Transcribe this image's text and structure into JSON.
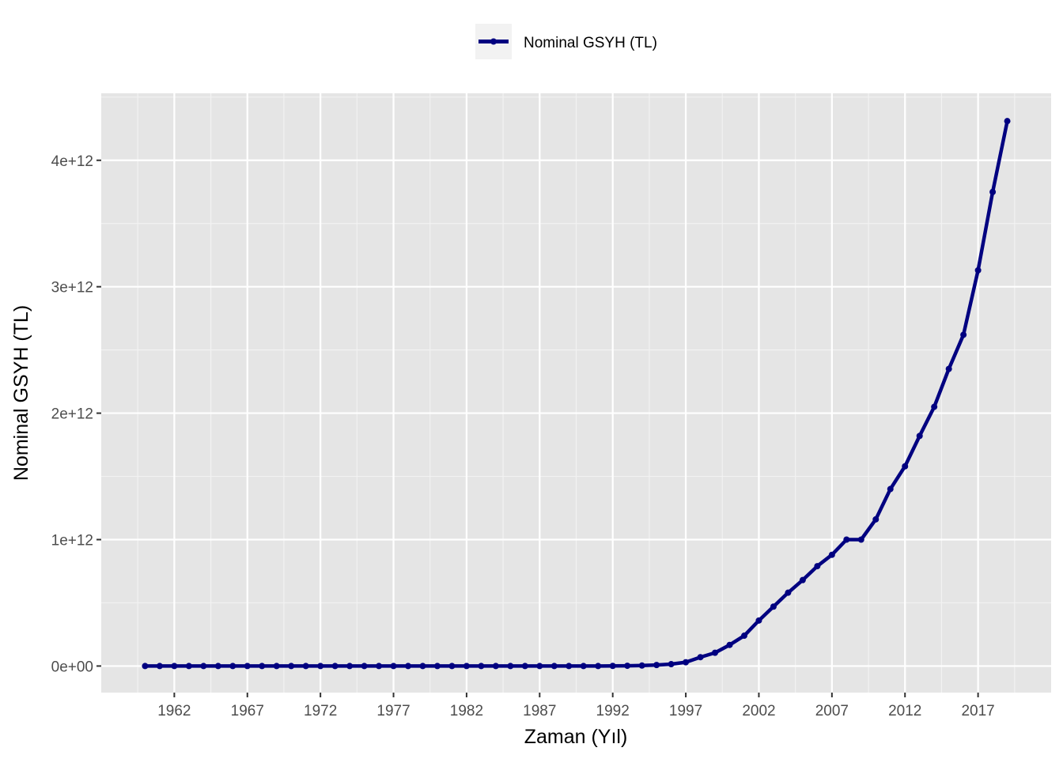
{
  "chart_data": {
    "type": "line",
    "xlabel": "Zaman (Yıl)",
    "ylabel": "Nominal GSYH (TL)",
    "xlim": [
      1957,
      2022
    ],
    "ylim": [
      -210000000000.0,
      4530000000000.0
    ],
    "x_ticks": [
      1962,
      1967,
      1972,
      1977,
      1982,
      1987,
      1992,
      1997,
      2002,
      2007,
      2012,
      2017
    ],
    "x_tick_labels": [
      "1962",
      "1967",
      "1972",
      "1977",
      "1982",
      "1987",
      "1992",
      "1997",
      "2002",
      "2007",
      "2012",
      "2017"
    ],
    "y_ticks": [
      0,
      1000000000000.0,
      2000000000000.0,
      3000000000000.0,
      4000000000000.0
    ],
    "y_tick_labels": [
      "0e+00",
      "1e+12",
      "2e+12",
      "3e+12",
      "4e+12"
    ],
    "grid": true,
    "legend_position": "top",
    "series": [
      {
        "name": "Nominal GSYH (TL)",
        "color": "#000080",
        "x": [
          1960,
          1961,
          1962,
          1963,
          1964,
          1965,
          1966,
          1967,
          1968,
          1969,
          1970,
          1971,
          1972,
          1973,
          1974,
          1975,
          1976,
          1977,
          1978,
          1979,
          1980,
          1981,
          1982,
          1983,
          1984,
          1985,
          1986,
          1987,
          1988,
          1989,
          1990,
          1991,
          1992,
          1993,
          1994,
          1995,
          1996,
          1997,
          1998,
          1999,
          2000,
          2001,
          2002,
          2003,
          2004,
          2005,
          2006,
          2007,
          2008,
          2009,
          2010,
          2011,
          2012,
          2013,
          2014,
          2015,
          2016,
          2017,
          2018,
          2019
        ],
        "values": [
          0,
          0,
          0,
          0,
          0,
          0,
          0,
          0,
          0,
          0,
          0,
          0,
          0,
          0,
          0,
          0,
          0,
          0,
          0,
          0,
          0,
          0,
          0,
          0,
          0,
          0,
          0,
          0,
          0,
          0,
          0,
          0,
          1000000000,
          2000000000,
          4000000000,
          8000000000,
          15000000000,
          30000000000,
          70000000000,
          105000000000,
          167000000000,
          240000000000,
          360000000000,
          470000000000,
          580000000000,
          680000000000,
          790000000000,
          880000000000,
          1000000000000,
          1000000000000,
          1160000000000,
          1400000000000,
          1580000000000,
          1820000000000,
          2050000000000,
          2350000000000,
          2620000000000,
          3130000000000,
          3750000000000,
          4310000000000
        ]
      }
    ]
  }
}
